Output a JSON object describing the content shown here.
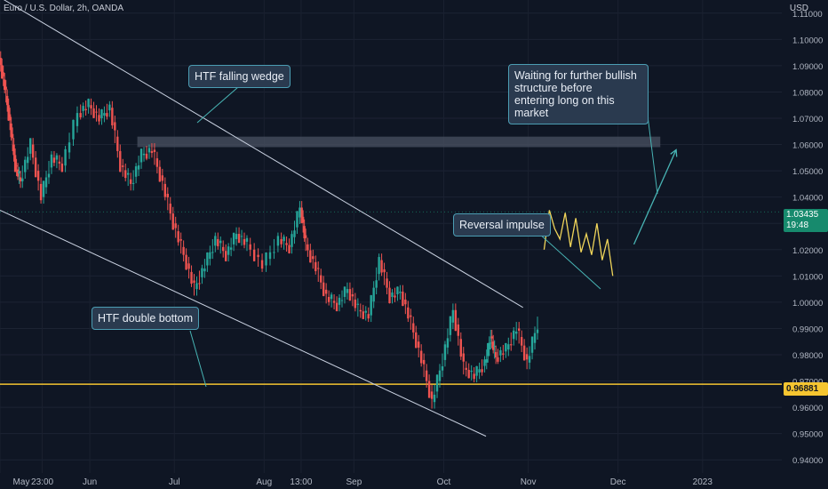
{
  "header": {
    "symbol": "Euro / U.S. Dollar, 2h, OANDA",
    "currency": "USD"
  },
  "chart_data": {
    "type": "line",
    "title": "Euro / U.S. Dollar, 2h, OANDA",
    "yaxis": {
      "label": "USD",
      "ylim": [
        0.935,
        1.115
      ],
      "ticks": [
        0.94,
        0.95,
        0.96,
        0.97,
        0.98,
        0.99,
        1.0,
        1.01,
        1.02,
        1.03,
        1.04,
        1.05,
        1.06,
        1.07,
        1.08,
        1.09,
        1.1,
        1.11
      ],
      "tick_labels": [
        "0.94000",
        "0.95000",
        "0.96000",
        "0.97000",
        "0.98000",
        "0.99000",
        "1.00000",
        "1.01000",
        "1.02000",
        "1.03000",
        "1.04000",
        "1.05000",
        "1.06000",
        "1.07000",
        "1.08000",
        "1.09000",
        "1.10000",
        "1.11000"
      ]
    },
    "xaxis": {
      "labels": [
        "May",
        "23:00",
        "Jun",
        "Jul",
        "Aug",
        "13:00",
        "Sep",
        "Oct",
        "Nov",
        "Dec",
        "2023"
      ],
      "positions": [
        0.0,
        0.08,
        0.17,
        0.33,
        0.5,
        0.57,
        0.67,
        0.84,
        1.0,
        1.17,
        1.33
      ]
    },
    "series": [
      {
        "role": "price",
        "x": [
          0.0,
          0.01,
          0.02,
          0.03,
          0.04,
          0.06,
          0.08,
          0.1,
          0.12,
          0.15,
          0.17,
          0.19,
          0.21,
          0.23,
          0.25,
          0.27,
          0.29,
          0.31,
          0.33,
          0.35,
          0.37,
          0.39,
          0.41,
          0.43,
          0.45,
          0.47,
          0.5,
          0.53,
          0.55,
          0.57,
          0.58,
          0.6,
          0.62,
          0.64,
          0.66,
          0.68,
          0.7,
          0.72,
          0.74,
          0.76,
          0.78,
          0.8,
          0.82,
          0.84,
          0.86,
          0.88,
          0.9,
          0.92,
          0.93,
          0.94,
          0.96,
          0.98,
          1.0,
          1.02
        ],
        "y": [
          1.093,
          1.082,
          1.068,
          1.052,
          1.046,
          1.06,
          1.04,
          1.055,
          1.052,
          1.072,
          1.075,
          1.07,
          1.074,
          1.052,
          1.045,
          1.056,
          1.058,
          1.045,
          1.03,
          1.018,
          1.005,
          1.014,
          1.024,
          1.018,
          1.026,
          1.022,
          1.014,
          1.024,
          1.021,
          1.036,
          1.022,
          1.013,
          1.002,
          0.999,
          1.005,
          0.997,
          0.995,
          1.016,
          1.002,
          1.004,
          0.992,
          0.978,
          0.962,
          0.978,
          0.997,
          0.975,
          0.972,
          0.977,
          0.987,
          0.979,
          0.982,
          0.99,
          0.977,
          0.992
        ]
      },
      {
        "role": "projection",
        "x": [
          1.03,
          1.04,
          1.05,
          1.06,
          1.07,
          1.08,
          1.09,
          1.1,
          1.11,
          1.12,
          1.13,
          1.14,
          1.15,
          1.16
        ],
        "y": [
          1.02,
          1.035,
          1.028,
          1.024,
          1.034,
          1.021,
          1.032,
          1.019,
          1.026,
          1.018,
          1.03,
          1.016,
          1.024,
          1.01
        ]
      }
    ],
    "levels": [
      {
        "name": "support",
        "value": 0.96881,
        "label": "0.96881",
        "color": "#f5c530"
      },
      {
        "name": "resistance-zone",
        "from": 1.059,
        "to": 1.063,
        "color": "#4a5261"
      }
    ],
    "current_price": {
      "value": 1.03435,
      "label": "1.03435",
      "countdown": "19:48",
      "color": "#178a6d"
    },
    "trendlines": [
      {
        "name": "wedge-upper",
        "from": [
          0.0,
          1.116
        ],
        "to": [
          0.99,
          0.998
        ]
      },
      {
        "name": "wedge-lower",
        "from": [
          0.0,
          1.035
        ],
        "to": [
          0.92,
          0.949
        ]
      }
    ],
    "arrow": {
      "from": [
        1.2,
        1.022
      ],
      "to": [
        1.28,
        1.058
      ]
    },
    "annotations": [
      {
        "text": "HTF falling wedge"
      },
      {
        "text": "Waiting for further bullish structure before entering long on this market"
      },
      {
        "text": "Reversal impulse"
      },
      {
        "text": "HTF double bottom"
      }
    ],
    "grid": true,
    "colors": {
      "background": "#0f1624",
      "up": "#26a69a",
      "down": "#ef5350",
      "line": "#b8c2d6",
      "accent": "#48b4b4"
    }
  },
  "callouts": {
    "wedge": "HTF falling wedge",
    "waiting": "Waiting for further bullish\nstructure before\nentering long on this market",
    "reversal": "Reversal impulse",
    "bottom": "HTF double bottom"
  }
}
